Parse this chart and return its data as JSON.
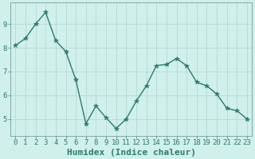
{
  "x": [
    0,
    1,
    2,
    3,
    4,
    5,
    6,
    7,
    8,
    9,
    10,
    11,
    12,
    13,
    14,
    15,
    16,
    17,
    18,
    19,
    20,
    21,
    22,
    23
  ],
  "y": [
    8.1,
    8.4,
    9.0,
    9.5,
    8.3,
    7.85,
    6.65,
    4.8,
    5.55,
    5.05,
    4.6,
    5.0,
    5.75,
    6.4,
    7.25,
    7.3,
    7.55,
    7.25,
    6.55,
    6.4,
    6.05,
    5.45,
    5.35,
    5.0
  ],
  "line_color": "#2e7b6e",
  "marker": "*",
  "marker_size": 4,
  "bg_color": "#cff0eb",
  "grid_color": "#b8d8d4",
  "xlabel": "Humidex (Indice chaleur)",
  "xlim": [
    -0.5,
    23.5
  ],
  "ylim": [
    4.3,
    9.9
  ],
  "yticks": [
    5,
    6,
    7,
    8,
    9
  ],
  "xticks": [
    0,
    1,
    2,
    3,
    4,
    5,
    6,
    7,
    8,
    9,
    10,
    11,
    12,
    13,
    14,
    15,
    16,
    17,
    18,
    19,
    20,
    21,
    22,
    23
  ],
  "xtick_labels": [
    "0",
    "1",
    "2",
    "3",
    "4",
    "5",
    "6",
    "7",
    "8",
    "9",
    "10",
    "11",
    "12",
    "13",
    "14",
    "15",
    "16",
    "17",
    "18",
    "19",
    "20",
    "21",
    "22",
    "23"
  ],
  "tick_fontsize": 6.5,
  "xlabel_fontsize": 8,
  "axis_color": "#2e7b6e",
  "spine_color": "#7a9e9a"
}
